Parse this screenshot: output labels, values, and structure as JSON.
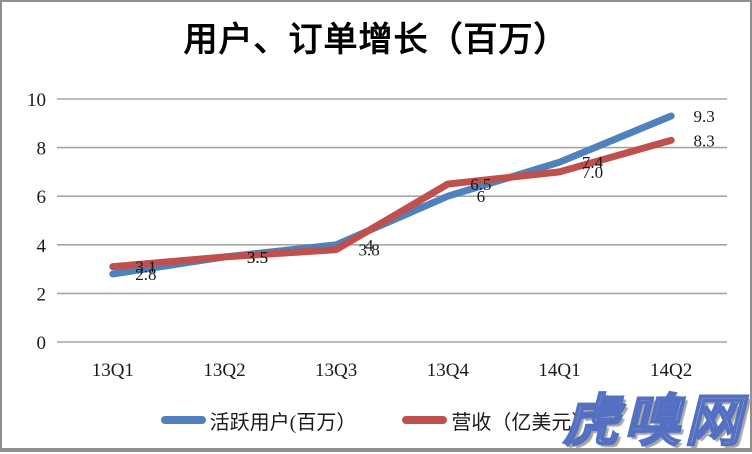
{
  "chart_data": {
    "type": "line",
    "title": "用户、订单增长（百万）",
    "categories": [
      "13Q1",
      "13Q2",
      "13Q3",
      "13Q4",
      "14Q1",
      "14Q2"
    ],
    "series": [
      {
        "name": "活跃用户(百万）",
        "color": "#4F81BD",
        "values": [
          2.8,
          3.5,
          4,
          6,
          7.4,
          9.3
        ],
        "labels": [
          "2.8",
          "3.5",
          "4",
          "6",
          "7.4",
          "9.3"
        ]
      },
      {
        "name": "营收（亿美元）",
        "color": "#C0504D",
        "values": [
          3.1,
          3.5,
          3.8,
          6.5,
          7.0,
          8.3
        ],
        "labels": [
          "3.1",
          "3.5",
          "3.8",
          "6.5",
          "7.0",
          "8.3"
        ]
      }
    ],
    "ylim": [
      0,
      10
    ],
    "yticks": [
      0,
      2,
      4,
      6,
      8,
      10
    ],
    "grid": true,
    "legend_position": "bottom"
  },
  "watermark": {
    "text": "虎嗅网",
    "fill_color": "#b3bfe9",
    "outline_color": "#5470c2"
  },
  "style": {
    "grid_color": "#a6a6a6",
    "frame_border_color": "#8f8f8f",
    "label_color": "#1a1a1a"
  }
}
